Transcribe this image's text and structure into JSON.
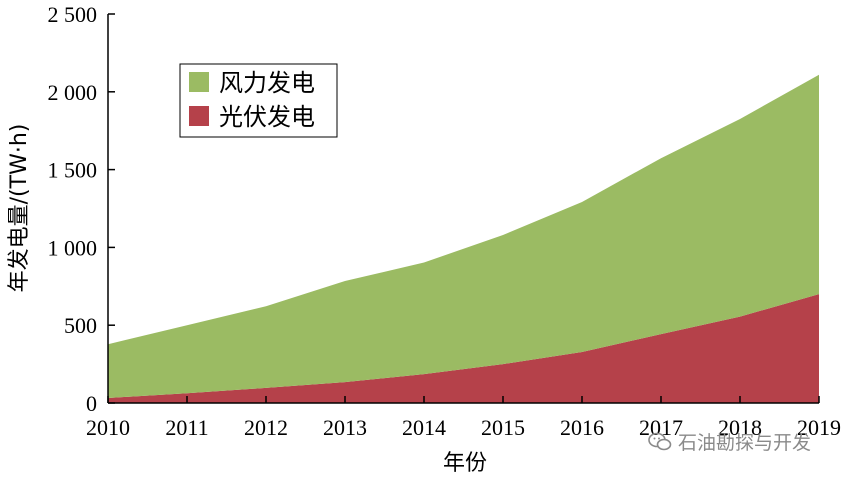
{
  "chart_data": {
    "type": "area",
    "stacked": true,
    "x": [
      2010,
      2011,
      2012,
      2013,
      2014,
      2015,
      2016,
      2017,
      2018,
      2019
    ],
    "series": [
      {
        "name": "光伏发电",
        "color": "#b5414a",
        "values": [
          32,
          63,
          97,
          134,
          186,
          250,
          328,
          443,
          555,
          700
        ]
      },
      {
        "name": "风力发电",
        "color": "#9bbb63",
        "values": [
          346,
          437,
          525,
          650,
          717,
          830,
          964,
          1130,
          1270,
          1410
        ]
      }
    ],
    "xlabel": "年份",
    "ylabel": "年发电量/(TW·h)",
    "ylim": [
      0,
      2500
    ],
    "yticks": [
      0,
      500,
      1000,
      1500,
      2000,
      2500
    ],
    "ytick_labels": [
      "0",
      "500",
      "1 000",
      "1 500",
      "2 000",
      "2 500"
    ],
    "legend": {
      "placement": "upper-left",
      "order": [
        "风力发电",
        "光伏发电"
      ]
    },
    "grid": false
  },
  "watermark": {
    "text": "石油勘探与开发",
    "icon": "wechat-icon"
  }
}
